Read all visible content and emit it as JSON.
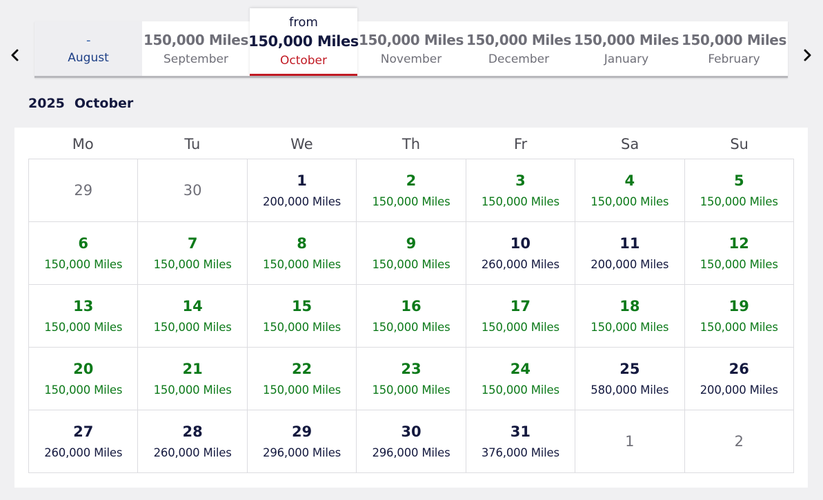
{
  "nav": {
    "prev_icon": "chevron-left-icon",
    "next_icon": "chevron-right-icon"
  },
  "months": [
    {
      "price": "-",
      "name": "August",
      "state": "disabled"
    },
    {
      "price": "150,000 Miles",
      "name": "September",
      "state": "normal"
    },
    {
      "from": "from",
      "price": "150,000 Miles",
      "name": "October",
      "state": "active"
    },
    {
      "price": "150,000 Miles",
      "name": "November",
      "state": "normal"
    },
    {
      "price": "150,000 Miles",
      "name": "December",
      "state": "normal"
    },
    {
      "price": "150,000 Miles",
      "name": "January",
      "state": "normal"
    },
    {
      "price": "150,000 Miles",
      "name": "February",
      "state": "normal"
    }
  ],
  "heading": {
    "year": "2025",
    "month": "October"
  },
  "weekdays": [
    "Mo",
    "Tu",
    "We",
    "Th",
    "Fr",
    "Sa",
    "Su"
  ],
  "weeks": [
    [
      {
        "day": "29",
        "miles": "",
        "type": "out"
      },
      {
        "day": "30",
        "miles": "",
        "type": "out"
      },
      {
        "day": "1",
        "miles": "200,000 Miles",
        "type": "normal"
      },
      {
        "day": "2",
        "miles": "150,000 Miles",
        "type": "low"
      },
      {
        "day": "3",
        "miles": "150,000 Miles",
        "type": "low"
      },
      {
        "day": "4",
        "miles": "150,000 Miles",
        "type": "low"
      },
      {
        "day": "5",
        "miles": "150,000 Miles",
        "type": "low"
      }
    ],
    [
      {
        "day": "6",
        "miles": "150,000 Miles",
        "type": "low"
      },
      {
        "day": "7",
        "miles": "150,000 Miles",
        "type": "low"
      },
      {
        "day": "8",
        "miles": "150,000 Miles",
        "type": "low"
      },
      {
        "day": "9",
        "miles": "150,000 Miles",
        "type": "low"
      },
      {
        "day": "10",
        "miles": "260,000 Miles",
        "type": "normal"
      },
      {
        "day": "11",
        "miles": "200,000 Miles",
        "type": "normal"
      },
      {
        "day": "12",
        "miles": "150,000 Miles",
        "type": "low"
      }
    ],
    [
      {
        "day": "13",
        "miles": "150,000 Miles",
        "type": "low"
      },
      {
        "day": "14",
        "miles": "150,000 Miles",
        "type": "low"
      },
      {
        "day": "15",
        "miles": "150,000 Miles",
        "type": "low"
      },
      {
        "day": "16",
        "miles": "150,000 Miles",
        "type": "low"
      },
      {
        "day": "17",
        "miles": "150,000 Miles",
        "type": "low"
      },
      {
        "day": "18",
        "miles": "150,000 Miles",
        "type": "low"
      },
      {
        "day": "19",
        "miles": "150,000 Miles",
        "type": "low"
      }
    ],
    [
      {
        "day": "20",
        "miles": "150,000 Miles",
        "type": "low"
      },
      {
        "day": "21",
        "miles": "150,000 Miles",
        "type": "low"
      },
      {
        "day": "22",
        "miles": "150,000 Miles",
        "type": "low"
      },
      {
        "day": "23",
        "miles": "150,000 Miles",
        "type": "low"
      },
      {
        "day": "24",
        "miles": "150,000 Miles",
        "type": "low"
      },
      {
        "day": "25",
        "miles": "580,000 Miles",
        "type": "normal"
      },
      {
        "day": "26",
        "miles": "200,000 Miles",
        "type": "normal"
      }
    ],
    [
      {
        "day": "27",
        "miles": "260,000 Miles",
        "type": "normal"
      },
      {
        "day": "28",
        "miles": "260,000 Miles",
        "type": "normal"
      },
      {
        "day": "29",
        "miles": "296,000 Miles",
        "type": "normal"
      },
      {
        "day": "30",
        "miles": "296,000 Miles",
        "type": "normal"
      },
      {
        "day": "31",
        "miles": "376,000 Miles",
        "type": "normal"
      },
      {
        "day": "1",
        "miles": "",
        "type": "out"
      },
      {
        "day": "2",
        "miles": "",
        "type": "out"
      }
    ]
  ],
  "colors": {
    "navy": "#14193f",
    "low_price_green": "#0d7a1a",
    "active_red": "#c11a24",
    "muted_gray": "#6f6f78"
  }
}
